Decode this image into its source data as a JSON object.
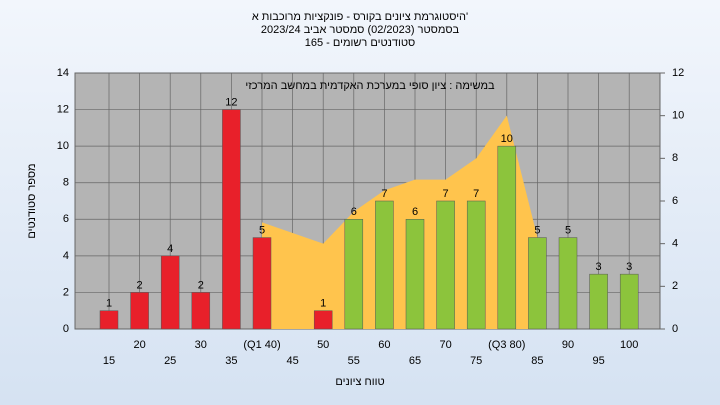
{
  "chart_data": {
    "type": "bar",
    "title": [
      "היסטוגרמת ציונים בקורס - פונקציות מרוכבות א'",
      "בסמסטר  (02/2023)  סמסטר אביב 2023/24",
      "סטודנטים רשומים - 165"
    ],
    "annotation": "במשימה : ציון סופי במערכת האקדמית במחשב המרכזי",
    "x_label": "טווח ציונים",
    "y_label": "מספר סטודנטים",
    "categories": [
      "15",
      "20",
      "25",
      "30",
      "35",
      "(Q1 40)",
      "45",
      "50",
      "55",
      "60",
      "65",
      "70",
      "75",
      "(Q3 80)",
      "85",
      "90",
      "95",
      "100"
    ],
    "values": [
      1,
      2,
      4,
      2,
      12,
      5,
      0,
      1,
      6,
      7,
      6,
      7,
      7,
      10,
      5,
      5,
      3,
      3
    ],
    "colors": [
      "#e8202a",
      "#e8202a",
      "#e8202a",
      "#e8202a",
      "#e8202a",
      "#e8202a",
      "#e8202a",
      "#e8202a",
      "#8cc43c",
      "#8cc43c",
      "#8cc43c",
      "#8cc43c",
      "#8cc43c",
      "#8cc43c",
      "#8cc43c",
      "#8cc43c",
      "#8cc43c",
      "#8cc43c"
    ],
    "area": {
      "axis": "y2",
      "color": "#ffc44d",
      "values": [
        null,
        null,
        null,
        null,
        null,
        5,
        4.5,
        4,
        5.5,
        6.5,
        7,
        7,
        8,
        10,
        4.3,
        null,
        null,
        null
      ]
    },
    "ylim": [
      0,
      14
    ],
    "yticks": [
      0,
      2,
      4,
      6,
      8,
      10,
      12,
      14
    ],
    "y2lim": [
      0,
      12
    ],
    "y2ticks": [
      0,
      2,
      4,
      6,
      8,
      10,
      12
    ],
    "grid": true
  }
}
